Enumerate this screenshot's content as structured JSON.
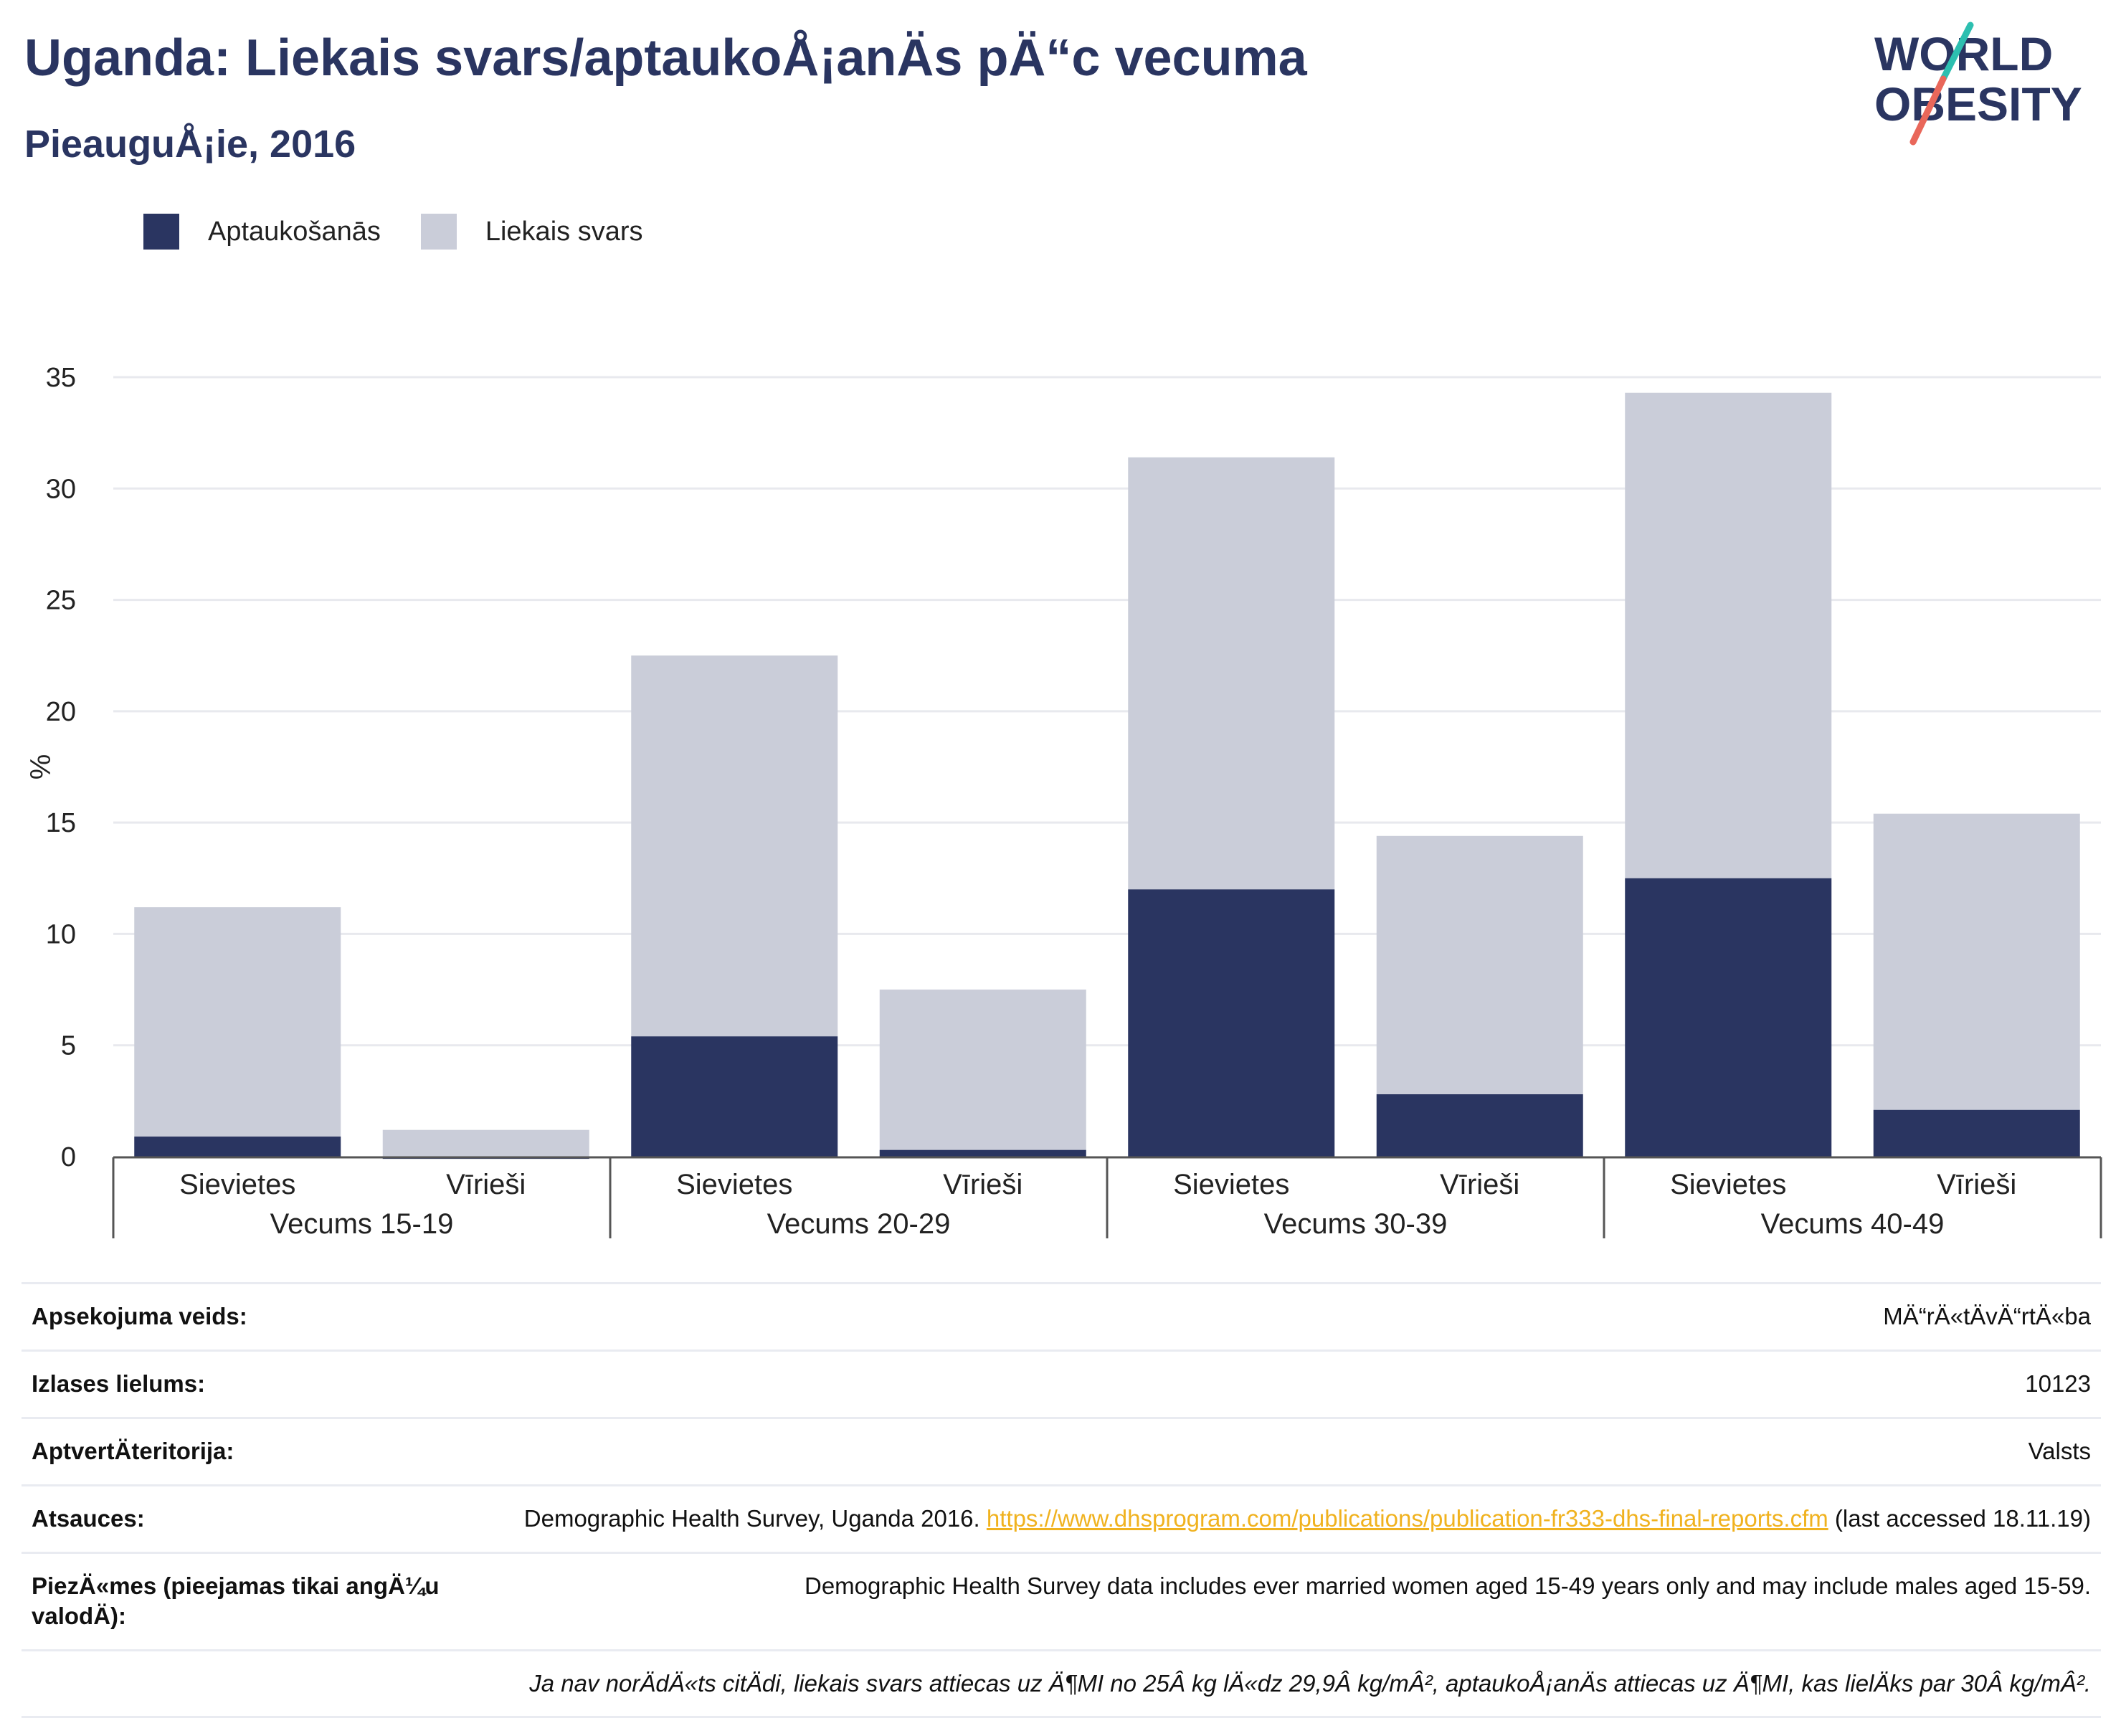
{
  "header": {
    "title": "Uganda: Liekais svars/aptaukoÅ¡anÄs pÄ“c vecuma",
    "subtitle": "PieauguÅ¡ie, 2016"
  },
  "logo": {
    "line1": "WORLD",
    "line2": "OBESITY",
    "icon": "world-obesity-logo"
  },
  "colors": {
    "obesity": "#2a3561",
    "overweight": "#cacdd9",
    "title": "#2a3561",
    "link": "#f0b21f",
    "accent_slash_top": "#2dbfb0",
    "accent_slash_bottom": "#e9675a"
  },
  "chart_data": {
    "type": "bar",
    "stacked": true,
    "ylabel": "%",
    "ylim": [
      0,
      35
    ],
    "yticks": [
      0,
      5,
      10,
      15,
      20,
      25,
      30,
      35
    ],
    "grid": true,
    "legend_position": "top-left",
    "groups": [
      "Vecums 15-19",
      "Vecums 20-29",
      "Vecums 30-39",
      "Vecums 40-49"
    ],
    "categories": [
      "Sievietes",
      "Vīrieši",
      "Sievietes",
      "Vīrieši",
      "Sievietes",
      "Vīrieši",
      "Sievietes",
      "Vīrieši"
    ],
    "series": [
      {
        "name": "Aptaukošanās",
        "values": [
          0.9,
          -0.1,
          5.4,
          0.3,
          12.0,
          2.8,
          12.5,
          2.1
        ]
      },
      {
        "name": "Liekais svars",
        "values": [
          10.3,
          1.2,
          17.1,
          7.2,
          19.4,
          11.6,
          21.8,
          13.3
        ]
      }
    ]
  },
  "info": {
    "rows": [
      {
        "label": "Apsekojuma veids:",
        "value": "MÄ“rÄ«tÄvÄ“rtÄ«ba"
      },
      {
        "label": "Izlases lielums:",
        "value": "10123"
      },
      {
        "label": "AptvertÄteritorija:",
        "value": "Valsts"
      }
    ],
    "sources": {
      "label": "Atsauces:",
      "text_before": "Demographic Health Survey, Uganda 2016. ",
      "link": "https://www.dhsprogram.com/publications/publication-fr333-dhs-final-reports.cfm",
      "text_after": " (last accessed 18.11.19)"
    },
    "notes": {
      "label": "PiezÄ«mes (pieejamas tikai angÄ¼u valodÄ):",
      "value": "Demographic Health Survey data includes ever married women aged 15-49 years only and may include males aged 15-59."
    },
    "footnote": "Ja nav norÄdÄ«ts citÄdi, liekais svars attiecas uz Ä¶MI no 25Â kg lÄ«dz 29,9Â kg/mÂ², aptaukoÅ¡anÄs attiecas uz Ä¶MI, kas lielÄks par 30Â kg/mÂ²."
  }
}
